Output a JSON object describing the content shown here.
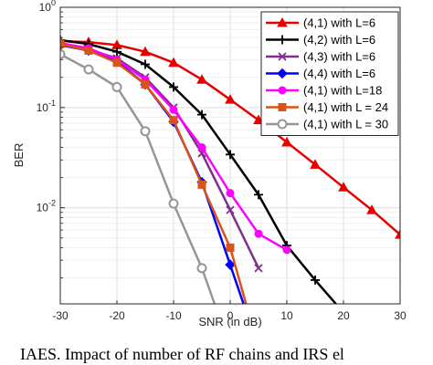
{
  "chart_data": {
    "type": "line",
    "xlabel": "SNR (in dB)",
    "ylabel": "BER",
    "xlim": [
      -30,
      30
    ],
    "ylim": [
      0.0011,
      1
    ],
    "yscale": "log",
    "xticks": [
      -30,
      -20,
      -10,
      0,
      10,
      20,
      30
    ],
    "xtick_labels": [
      "-30",
      "-20",
      "-10",
      "0",
      "10",
      "20",
      "30"
    ],
    "yticks": [
      1,
      0.1,
      0.01
    ],
    "ytick_labels": [
      {
        "base": "10",
        "exp": "0"
      },
      {
        "base": "10",
        "exp": "-1"
      },
      {
        "base": "10",
        "exp": "-2"
      }
    ],
    "grid": true,
    "legend_position": "top-right",
    "series": [
      {
        "name": "(4,1) with L=6",
        "color": "#e60000",
        "marker": "triangle",
        "x": [
          -30,
          -25,
          -20,
          -15,
          -10,
          -5,
          0,
          5,
          10,
          15,
          20,
          25,
          30
        ],
        "y": [
          0.46,
          0.45,
          0.42,
          0.36,
          0.28,
          0.19,
          0.12,
          0.075,
          0.045,
          0.027,
          0.016,
          0.0095,
          0.0054
        ]
      },
      {
        "name": "(4,2) with L=6",
        "color": "#000000",
        "marker": "plus",
        "x": [
          -30,
          -25,
          -20,
          -15,
          -10,
          -5,
          0,
          5,
          10,
          15,
          20
        ],
        "y": [
          0.47,
          0.43,
          0.36,
          0.27,
          0.16,
          0.085,
          0.034,
          0.0135,
          0.0042,
          0.0019,
          0.0009
        ]
      },
      {
        "name": "(4,3) with L=6",
        "color": "#7e2f8e",
        "marker": "x",
        "x": [
          -30,
          -25,
          -20,
          -15,
          -10,
          -5,
          0,
          5
        ],
        "y": [
          0.44,
          0.38,
          0.31,
          0.2,
          0.1,
          0.035,
          0.0095,
          0.0025
        ]
      },
      {
        "name": "(4,4) with L=6",
        "color": "#0000ff",
        "marker": "diamond",
        "x": [
          -30,
          -25,
          -20,
          -15,
          -10,
          -5,
          0,
          5
        ],
        "y": [
          0.42,
          0.37,
          0.29,
          0.17,
          0.072,
          0.018,
          0.0027,
          0.0004
        ]
      },
      {
        "name": "(4,1) with L=18",
        "color": "#ff00ff",
        "marker": "circle-filled",
        "x": [
          -30,
          -25,
          -20,
          -15,
          -10,
          -5,
          0,
          5,
          10
        ],
        "y": [
          0.44,
          0.39,
          0.3,
          0.19,
          0.095,
          0.04,
          0.014,
          0.0055,
          0.0038
        ]
      },
      {
        "name": "(4,1) with L = 24",
        "color": "#d95319",
        "marker": "square",
        "x": [
          -30,
          -25,
          -20,
          -15,
          -10,
          -5,
          0,
          5
        ],
        "y": [
          0.43,
          0.37,
          0.28,
          0.17,
          0.075,
          0.017,
          0.004,
          0.0004
        ]
      },
      {
        "name": "(4,1) with L = 30",
        "color": "#969696",
        "marker": "circle",
        "x": [
          -30,
          -25,
          -20,
          -15,
          -10,
          -5,
          0
        ],
        "y": [
          0.34,
          0.24,
          0.16,
          0.058,
          0.011,
          0.0025,
          0.0004
        ]
      }
    ]
  },
  "caption": "IAES. Impact of number of RF chains and IRS el"
}
